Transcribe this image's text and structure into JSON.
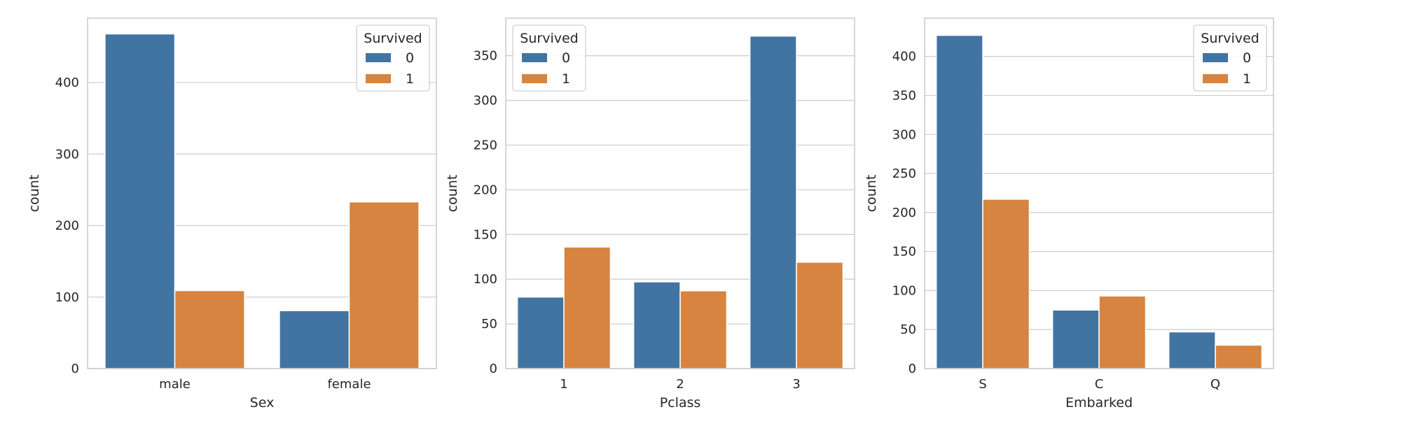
{
  "colors": {
    "series_0": "#4174a1",
    "series_1": "#d6843f",
    "grid": "#cfcfcf",
    "frame": "#c8c8c8",
    "background": "#ffffff"
  },
  "legend_title": "Survived",
  "chart_data": [
    {
      "type": "bar",
      "categories": [
        "male",
        "female"
      ],
      "series": [
        {
          "name": "0",
          "values": [
            468,
            81
          ]
        },
        {
          "name": "1",
          "values": [
            109,
            233
          ]
        }
      ],
      "xlabel": "Sex",
      "ylabel": "count",
      "ylim": [
        0,
        490
      ],
      "yticks": [
        0,
        100,
        200,
        300,
        400
      ],
      "grid": true,
      "legend_placement": "top-right"
    },
    {
      "type": "bar",
      "categories": [
        "1",
        "2",
        "3"
      ],
      "series": [
        {
          "name": "0",
          "values": [
            80,
            97,
            372
          ]
        },
        {
          "name": "1",
          "values": [
            136,
            87,
            119
          ]
        }
      ],
      "xlabel": "Pclass",
      "ylabel": "count",
      "ylim": [
        0,
        392
      ],
      "yticks": [
        0,
        50,
        100,
        150,
        200,
        250,
        300,
        350
      ],
      "grid": true,
      "legend_placement": "top-left"
    },
    {
      "type": "bar",
      "categories": [
        "S",
        "C",
        "Q"
      ],
      "series": [
        {
          "name": "0",
          "values": [
            427,
            75,
            47
          ]
        },
        {
          "name": "1",
          "values": [
            217,
            93,
            30
          ]
        }
      ],
      "xlabel": "Embarked",
      "ylabel": "count",
      "ylim": [
        0,
        449
      ],
      "yticks": [
        0,
        50,
        100,
        150,
        200,
        250,
        300,
        350,
        400
      ],
      "grid": true,
      "legend_placement": "top-right"
    }
  ]
}
